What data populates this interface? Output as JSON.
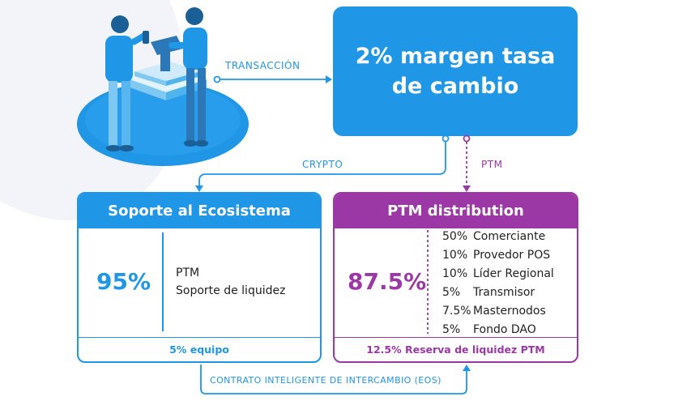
{
  "colors": {
    "blue": "#1f96e6",
    "purple": "#9b38a6",
    "lightblue": "#7ec8f2",
    "text": "#222222"
  },
  "flow": {
    "transaction_label": "TRANSACCIÓN",
    "top_box_title": "2% margen tasa\nde cambio",
    "crypto_label": "CRYPTO",
    "ptm_label": "PTM",
    "contract_label": "CONTRATO INTELIGENTE DE INTERCAMBIO (EOS)"
  },
  "ecosystem": {
    "title": "Soporte al Ecosistema",
    "percent": "95%",
    "items": [
      "PTM",
      "Soporte de liquidez"
    ],
    "footer": "5% equipo"
  },
  "distribution": {
    "title": "PTM distribution",
    "percent": "87.5%",
    "items": [
      {
        "value": "50%",
        "label": "Comerciante"
      },
      {
        "value": "10%",
        "label": "Provedor POS"
      },
      {
        "value": "10%",
        "label": "Líder Regional"
      },
      {
        "value": "5%",
        "label": "Transmisor"
      },
      {
        "value": "7.5%",
        "label": "Masternodos"
      },
      {
        "value": "5%",
        "label": "Fondo DAO"
      }
    ],
    "footer": "12.5% Reserva de liquidez PTM"
  }
}
